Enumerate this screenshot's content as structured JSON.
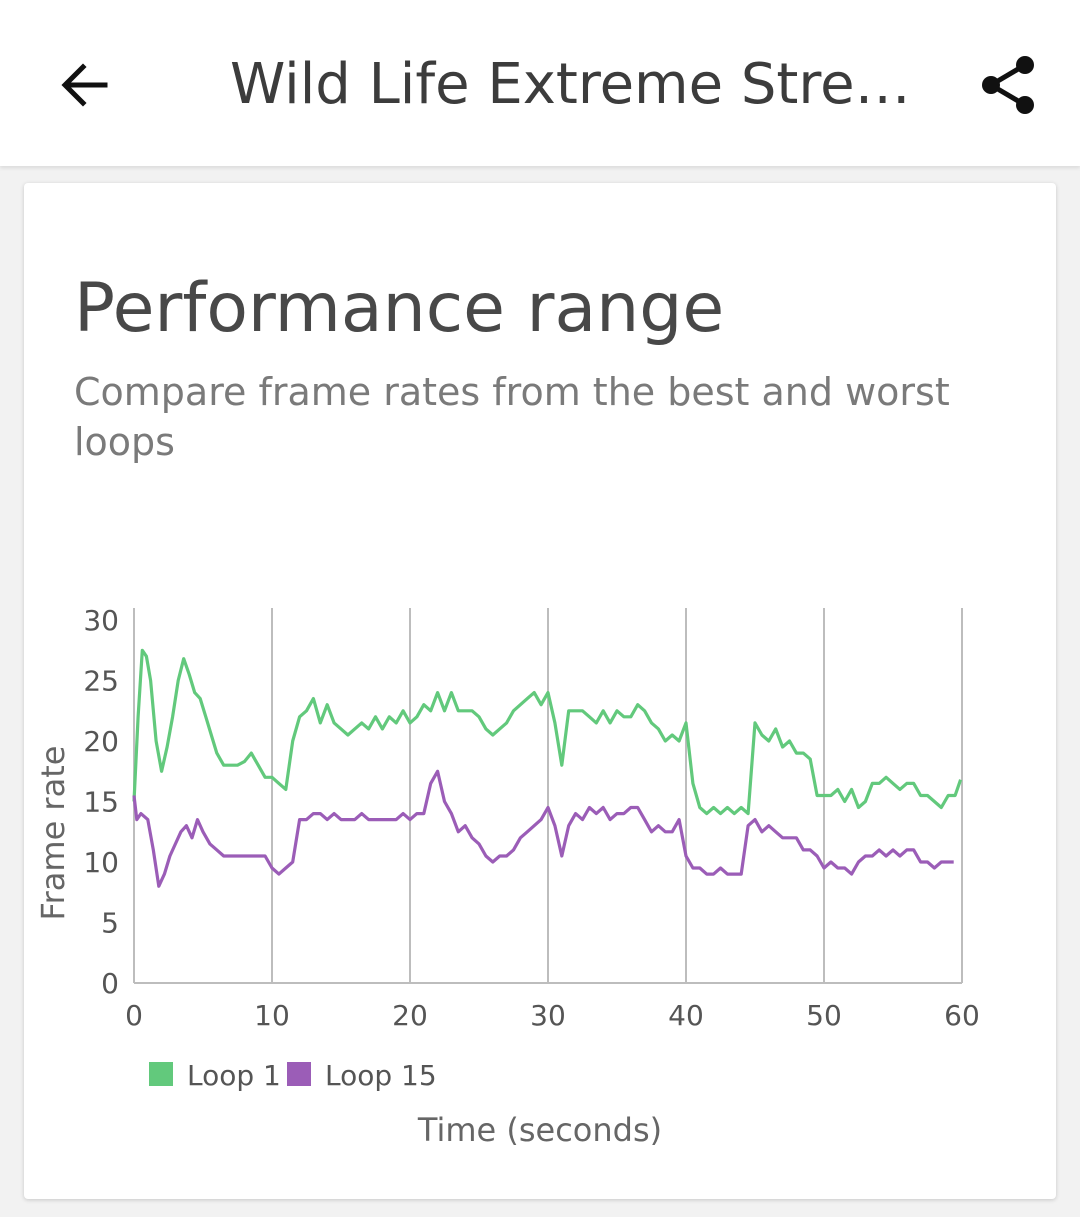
{
  "appbar": {
    "title": "Wild Life Extreme Stress Test",
    "back_icon": "arrow-left-icon",
    "share_icon": "share-icon"
  },
  "card": {
    "title": "Performance range",
    "subtitle": "Compare frame rates from the best and worst loops"
  },
  "colors": {
    "loop1": "#62c97c",
    "loop15": "#9b5db7"
  },
  "chart_data": {
    "type": "line",
    "xlabel": "Time (seconds)",
    "ylabel": "Frame rate",
    "xlim": [
      0,
      60
    ],
    "ylim": [
      0,
      30
    ],
    "x_ticks": [
      0,
      10,
      20,
      30,
      40,
      50,
      60
    ],
    "y_ticks": [
      0,
      5,
      10,
      15,
      20,
      25,
      30
    ],
    "grid": "vertical",
    "legend": "bottom-left",
    "series": [
      {
        "name": "Loop 1",
        "x": [
          0,
          0.3,
          0.6,
          0.9,
          1.2,
          1.6,
          2.0,
          2.4,
          2.8,
          3.2,
          3.6,
          4.0,
          4.4,
          4.8,
          5.2,
          5.6,
          6.0,
          6.5,
          7.0,
          7.5,
          8.0,
          8.5,
          9.0,
          9.5,
          10.0,
          10.5,
          11.0,
          11.5,
          12.0,
          12.5,
          13.0,
          13.5,
          14.0,
          14.5,
          15.0,
          15.5,
          16.0,
          16.5,
          17.0,
          17.5,
          18.0,
          18.5,
          19.0,
          19.5,
          20.0,
          20.5,
          21.0,
          21.5,
          22.0,
          22.5,
          23.0,
          23.5,
          24.0,
          24.5,
          25.0,
          25.5,
          26.0,
          26.5,
          27.0,
          27.5,
          28.0,
          28.5,
          29.0,
          29.5,
          30.0,
          30.5,
          31.0,
          31.5,
          32.0,
          32.5,
          33.0,
          33.5,
          34.0,
          34.5,
          35.0,
          35.5,
          36.0,
          36.5,
          37.0,
          37.5,
          38.0,
          38.5,
          39.0,
          39.5,
          40.0,
          40.5,
          41.0,
          41.5,
          42.0,
          42.5,
          43.0,
          43.5,
          44.0,
          44.5,
          45.0,
          45.5,
          46.0,
          46.5,
          47.0,
          47.5,
          48.0,
          48.5,
          49.0,
          49.5,
          50.0,
          50.5,
          51.0,
          51.5,
          52.0,
          52.5,
          53.0,
          53.5,
          54.0,
          54.5,
          55.0,
          55.5,
          56.0,
          56.5,
          57.0,
          57.5,
          58.0,
          58.5,
          59.0,
          59.5,
          59.9
        ],
        "y": [
          15,
          22,
          27.5,
          27,
          25,
          20,
          17.5,
          19.5,
          22,
          25,
          26.8,
          25.5,
          24,
          23.5,
          22,
          20.5,
          19,
          18,
          18,
          18,
          18.3,
          19,
          18,
          17,
          17,
          16.5,
          16,
          20,
          22,
          22.5,
          23.5,
          21.5,
          23,
          21.5,
          21,
          20.5,
          21,
          21.5,
          21,
          22,
          21,
          22,
          21.5,
          22.5,
          21.5,
          22,
          23,
          22.5,
          24,
          22.5,
          24,
          22.5,
          22.5,
          22.5,
          22,
          21,
          20.5,
          21,
          21.5,
          22.5,
          23,
          23.5,
          24,
          23,
          24,
          21.5,
          18,
          22.5,
          22.5,
          22.5,
          22,
          21.5,
          22.5,
          21.5,
          22.5,
          22,
          22,
          23,
          22.5,
          21.5,
          21,
          20,
          20.5,
          20,
          21.5,
          16.5,
          14.5,
          14,
          14.5,
          14,
          14.5,
          14,
          14.5,
          14,
          21.5,
          20.5,
          20,
          21,
          19.5,
          20,
          19,
          19,
          18.5,
          15.5,
          15.5,
          15.5,
          16,
          15,
          16,
          14.5,
          15,
          16.5,
          16.5,
          17,
          16.5,
          16,
          16.5,
          16.5,
          15.5,
          15.5,
          15,
          14.5,
          15.5,
          15.5,
          16.8
        ]
      },
      {
        "name": "Loop 15",
        "x": [
          0,
          0.2,
          0.5,
          1.0,
          1.4,
          1.8,
          2.2,
          2.6,
          3.0,
          3.4,
          3.8,
          4.2,
          4.6,
          5.0,
          5.5,
          6.0,
          6.5,
          7.0,
          7.5,
          8.0,
          8.5,
          9.0,
          9.5,
          10.0,
          10.5,
          11.0,
          11.5,
          12.0,
          12.5,
          13.0,
          13.5,
          14.0,
          14.5,
          15.0,
          15.5,
          16.0,
          16.5,
          17.0,
          17.5,
          18.0,
          18.5,
          19.0,
          19.5,
          20.0,
          20.5,
          21.0,
          21.5,
          22.0,
          22.5,
          23.0,
          23.5,
          24.0,
          24.5,
          25.0,
          25.5,
          26.0,
          26.5,
          27.0,
          27.5,
          28.0,
          28.5,
          29.0,
          29.5,
          30.0,
          30.5,
          31.0,
          31.5,
          32.0,
          32.5,
          33.0,
          33.5,
          34.0,
          34.5,
          35.0,
          35.5,
          36.0,
          36.5,
          37.0,
          37.5,
          38.0,
          38.5,
          39.0,
          39.5,
          40.0,
          40.5,
          41.0,
          41.5,
          42.0,
          42.5,
          43.0,
          43.5,
          44.0,
          44.5,
          45.0,
          45.5,
          46.0,
          46.5,
          47.0,
          47.5,
          48.0,
          48.5,
          49.0,
          49.5,
          50.0,
          50.5,
          51.0,
          51.5,
          52.0,
          52.5,
          53.0,
          53.5,
          54.0,
          54.5,
          55.0,
          55.5,
          56.0,
          56.5,
          57.0,
          57.5,
          58.0,
          58.5,
          59.0,
          59.4
        ],
        "y": [
          15.5,
          13.5,
          14,
          13.5,
          11,
          8,
          9,
          10.5,
          11.5,
          12.5,
          13,
          12,
          13.5,
          12.5,
          11.5,
          11,
          10.5,
          10.5,
          10.5,
          10.5,
          10.5,
          10.5,
          10.5,
          9.5,
          9,
          9.5,
          10,
          13.5,
          13.5,
          14,
          14,
          13.5,
          14,
          13.5,
          13.5,
          13.5,
          14,
          13.5,
          13.5,
          13.5,
          13.5,
          13.5,
          14,
          13.5,
          14,
          14,
          16.5,
          17.5,
          15,
          14,
          12.5,
          13,
          12,
          11.5,
          10.5,
          10,
          10.5,
          10.5,
          11,
          12,
          12.5,
          13,
          13.5,
          14.5,
          13,
          10.5,
          13,
          14,
          13.5,
          14.5,
          14,
          14.5,
          13.5,
          14,
          14,
          14.5,
          14.5,
          13.5,
          12.5,
          13,
          12.5,
          12.5,
          13.5,
          10.5,
          9.5,
          9.5,
          9,
          9,
          9.5,
          9,
          9,
          9,
          13,
          13.5,
          12.5,
          13,
          12.5,
          12,
          12,
          12,
          11,
          11,
          10.5,
          9.5,
          10,
          9.5,
          9.5,
          9,
          10,
          10.5,
          10.5,
          11,
          10.5,
          11,
          10.5,
          11,
          11,
          10,
          10,
          9.5,
          10,
          10,
          10
        ]
      }
    ]
  }
}
